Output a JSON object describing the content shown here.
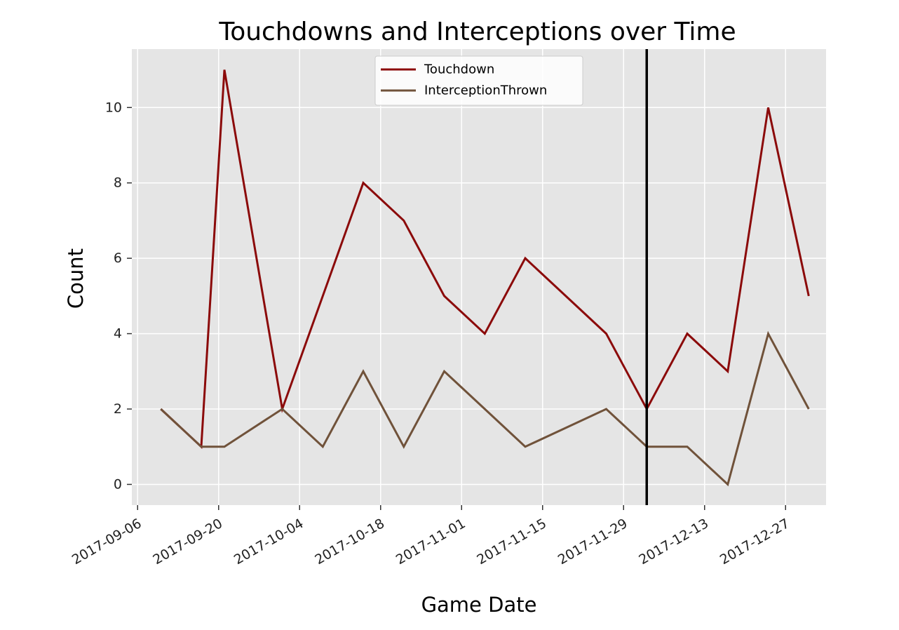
{
  "chart_data": {
    "type": "line",
    "title": "Touchdowns and Interceptions over Time",
    "xlabel": "Game Date",
    "ylabel": "Count",
    "x": [
      "2017-09-10",
      "2017-09-17",
      "2017-09-21",
      "2017-10-01",
      "2017-10-08",
      "2017-10-15",
      "2017-10-22",
      "2017-10-29",
      "2017-11-05",
      "2017-11-12",
      "2017-11-19",
      "2017-11-26",
      "2017-12-03",
      "2017-12-10",
      "2017-12-17",
      "2017-12-24",
      "2017-12-31"
    ],
    "series": [
      {
        "name": "Touchdown",
        "color": "#8b0a0a",
        "values": [
          2,
          1,
          11,
          2,
          5,
          8,
          7,
          5,
          4,
          6,
          5,
          4,
          2,
          4,
          3,
          10,
          5
        ]
      },
      {
        "name": "InterceptionThrown",
        "color": "#70523a",
        "values": [
          2,
          1,
          1,
          2,
          1,
          3,
          1,
          3,
          2,
          1,
          1.5,
          2,
          1,
          1,
          0,
          4,
          2
        ]
      }
    ],
    "xticks": [
      "2017-09-06",
      "2017-09-20",
      "2017-10-04",
      "2017-10-18",
      "2017-11-01",
      "2017-11-15",
      "2017-11-29",
      "2017-12-13",
      "2017-12-27"
    ],
    "yticks": [
      0,
      2,
      4,
      6,
      8,
      10
    ],
    "xlim": [
      "2017-09-05",
      "2018-01-03"
    ],
    "ylim": [
      -0.55,
      11.55
    ],
    "vline": "2017-12-03",
    "grid": true,
    "legend_position": "top-center",
    "background": "#e5e5e5"
  }
}
